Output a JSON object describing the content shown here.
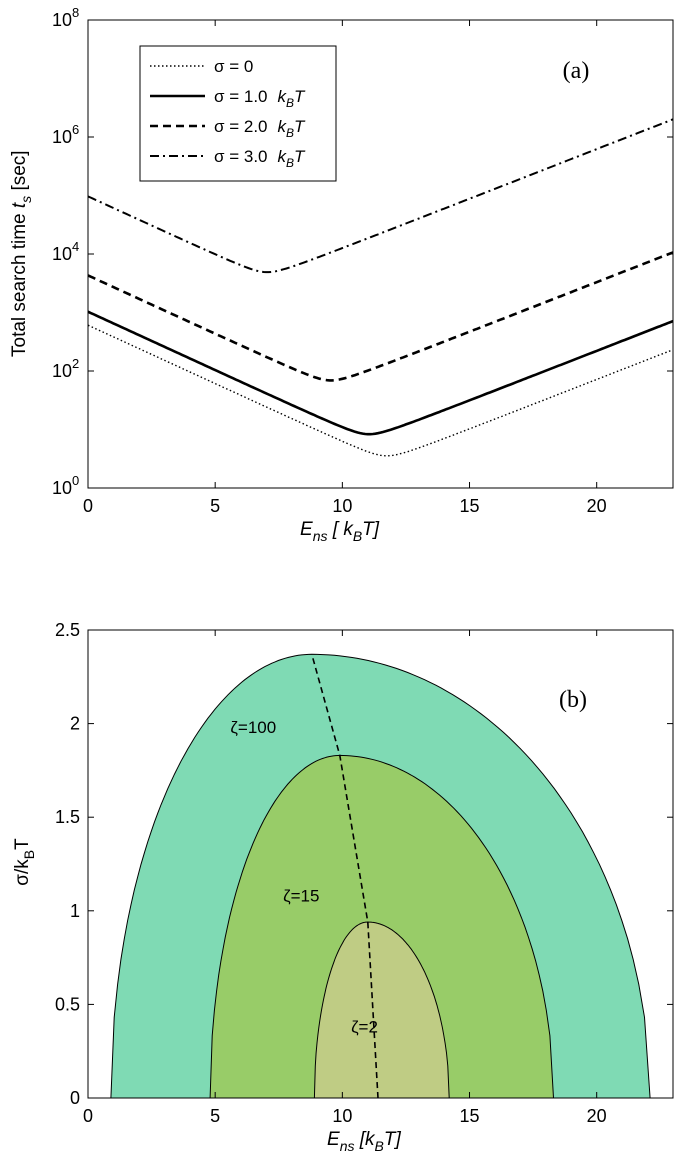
{
  "chart_data": [
    {
      "type": "line",
      "panel_label": "(a)",
      "xlabel": "E",
      "xlabel_sub": "ns",
      "xlabel_rest": " [ k",
      "xlabel_sub2": "B",
      "xlabel_end": "T]",
      "ylabel": "Total search time ",
      "ylabel_var": "t",
      "ylabel_sub": "s",
      "ylabel_unit": " [sec]",
      "xlim": [
        0,
        23
      ],
      "ylim_log10": [
        0,
        8
      ],
      "xticks": [
        "0",
        "5",
        "10",
        "15",
        "20"
      ],
      "xtick_values": [
        0,
        5,
        10,
        15,
        20
      ],
      "ytick_base": "10",
      "ytick_exponents": [
        "0",
        "2",
        "4",
        "6",
        "8"
      ],
      "ytick_values": [
        0,
        2,
        4,
        6,
        8
      ],
      "legend": [
        {
          "label": "σ = 0",
          "unit": "",
          "dash": "dotted"
        },
        {
          "label": "σ = 1.0",
          "unit": "k",
          "unit_sub": "B",
          "unit_end": "T",
          "dash": "solid"
        },
        {
          "label": "σ = 2.0",
          "unit": "k",
          "unit_sub": "B",
          "unit_end": "T",
          "dash": "dashed"
        },
        {
          "label": "σ = 3.0",
          "unit": "k",
          "unit_sub": "B",
          "unit_end": "T",
          "dash": "dashdot"
        }
      ],
      "series": [
        {
          "name": "σ = 0",
          "sigma": 0.0,
          "min_E": 11.7,
          "min_log10_t": 0.55,
          "slope_left": -0.2,
          "slope_right": 0.17
        },
        {
          "name": "σ = 1.0",
          "sigma": 1.0,
          "min_E": 11.0,
          "min_log10_t": 0.92,
          "slope_left": -0.2,
          "slope_right": 0.17
        },
        {
          "name": "σ = 2.0",
          "sigma": 2.0,
          "min_E": 9.5,
          "min_log10_t": 1.84,
          "slope_left": -0.2,
          "slope_right": 0.17
        },
        {
          "name": "σ = 3.0",
          "sigma": 3.0,
          "min_E": 7.0,
          "min_log10_t": 3.69,
          "slope_left": -0.2,
          "slope_right": 0.17
        }
      ]
    },
    {
      "type": "area",
      "panel_label": "(b)",
      "xlabel": "E",
      "xlabel_sub": "ns",
      "xlabel_rest": "  [k",
      "xlabel_sub2": "B",
      "xlabel_end": "T]",
      "ylabel": "σ/k",
      "ylabel_sub": "B",
      "ylabel_end": "T",
      "xlim": [
        0,
        23
      ],
      "ylim": [
        0,
        2.5
      ],
      "xticks": [
        "0",
        "5",
        "10",
        "15",
        "20"
      ],
      "xtick_values": [
        0,
        5,
        10,
        15,
        20
      ],
      "yticks": [
        "0",
        "0.5",
        "1",
        "1.5",
        "2",
        "2.5"
      ],
      "ytick_values": [
        0,
        0.5,
        1,
        1.5,
        2,
        2.5
      ],
      "regions": [
        {
          "label": "ζ=100",
          "color": "#7fdab4",
          "e_left": 0.9,
          "e_right": 22.1,
          "e_peak": 8.8,
          "sigma_peak": 2.37,
          "label_pos": [
            7.4,
            1.95
          ]
        },
        {
          "label": "ζ=15",
          "color": "#98cc68",
          "e_left": 4.8,
          "e_right": 18.3,
          "e_peak": 9.9,
          "sigma_peak": 1.83,
          "label_pos": [
            9.1,
            1.05
          ]
        },
        {
          "label": "ζ=2",
          "color": "#bfcc84",
          "e_left": 8.9,
          "e_right": 14.2,
          "e_peak": 11.0,
          "sigma_peak": 0.94,
          "label_pos": [
            11.4,
            0.35
          ]
        }
      ],
      "optimum_line": {
        "sigma": [
          0,
          0.94,
          1.83,
          2.37
        ],
        "E": [
          11.4,
          11.0,
          9.9,
          8.8
        ]
      }
    }
  ]
}
